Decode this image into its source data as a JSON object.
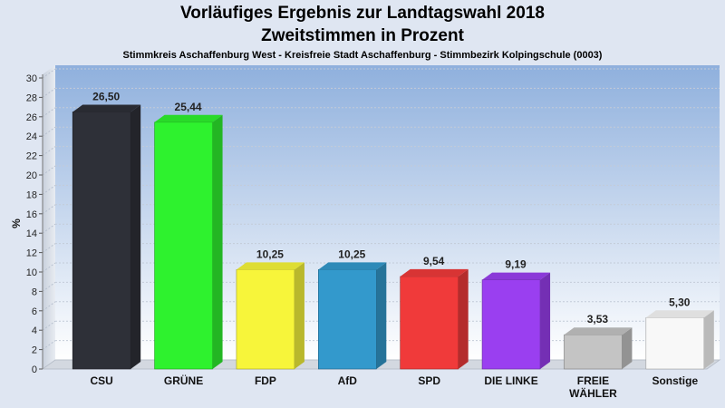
{
  "chart_data": {
    "type": "bar",
    "title": "Vorläufiges Ergebnis zur Landtagswahl 2018",
    "subtitle": "Zweitstimmen in Prozent",
    "caption": "Stimmkreis Aschaffenburg West - Kreisfreie Stadt Aschaffenburg - Stimmbezirk Kolpingschule (0003)",
    "ylabel": "%",
    "ylim": [
      0,
      30
    ],
    "ytick_step": 2,
    "grid": true,
    "categories": [
      "CSU",
      "GRÜNE",
      "FDP",
      "AfD",
      "SPD",
      "DIE LINKE",
      "FREIE WÄHLER",
      "Sonstige"
    ],
    "category_lines": [
      [
        "CSU"
      ],
      [
        "GRÜNE"
      ],
      [
        "FDP"
      ],
      [
        "AfD"
      ],
      [
        "SPD"
      ],
      [
        "DIE LINKE"
      ],
      [
        "FREIE",
        "WÄHLER"
      ],
      [
        "Sonstige"
      ]
    ],
    "values": [
      26.5,
      25.44,
      10.25,
      10.25,
      9.54,
      9.19,
      3.53,
      5.3
    ],
    "value_labels": [
      "26,50",
      "25,44",
      "10,25",
      "10,25",
      "9,54",
      "9,19",
      "3,53",
      "5,30"
    ],
    "colors": [
      "#2e3038",
      "#2ef22e",
      "#f7f53a",
      "#3399cc",
      "#f03a3a",
      "#9a3ff0",
      "#c4c4c4",
      "#f8f8f8"
    ]
  }
}
